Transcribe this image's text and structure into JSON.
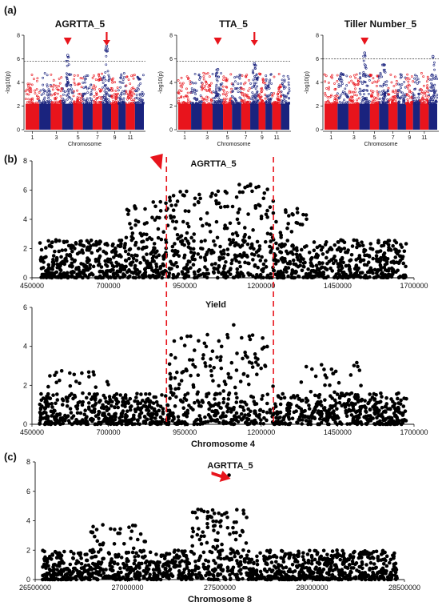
{
  "panel_labels": {
    "a": "(a)",
    "b": "(b)",
    "c": "(c)"
  },
  "chart_data": [
    {
      "type": "scatter",
      "panel": "a",
      "title": "AGRTTA_5",
      "xlabel": "Chromosome",
      "ylabel": "-log10(p)",
      "x_ticks": [
        "1",
        "3",
        "5",
        "7",
        "9",
        "11"
      ],
      "y_ticks": [
        "0",
        "2",
        "4",
        "6",
        "8"
      ],
      "ylim": [
        0,
        8
      ],
      "threshold": 5.8,
      "series_colors": [
        "#e8141c",
        "#1a237e"
      ],
      "peaks": [
        {
          "chromosome": 4,
          "value": 6.3
        },
        {
          "chromosome": 8,
          "value": 7.1
        }
      ],
      "markers": [
        {
          "shape": "triangle",
          "chromosome": 4
        },
        {
          "shape": "arrow",
          "chromosome": 8
        }
      ]
    },
    {
      "type": "scatter",
      "panel": "a",
      "title": "TTA_5",
      "xlabel": "Chromosome",
      "ylabel": "-log10(p)",
      "x_ticks": [
        "1",
        "3",
        "5",
        "7",
        "9",
        "11"
      ],
      "y_ticks": [
        "0",
        "2",
        "4",
        "6",
        "8"
      ],
      "ylim": [
        0,
        8
      ],
      "threshold": 5.8,
      "peaks": [
        {
          "chromosome": 4,
          "value": 5.1
        },
        {
          "chromosome": 8,
          "value": 5.6
        }
      ],
      "markers": [
        {
          "shape": "triangle",
          "chromosome": 4
        },
        {
          "shape": "arrow",
          "chromosome": 8
        }
      ]
    },
    {
      "type": "scatter",
      "panel": "a",
      "title": "Tiller Number_5",
      "xlabel": "Chromosome",
      "ylabel": "-log10(p)",
      "x_ticks": [
        "1",
        "3",
        "5",
        "7",
        "9",
        "11"
      ],
      "y_ticks": [
        "0",
        "2",
        "4",
        "6",
        "8"
      ],
      "ylim": [
        0,
        8
      ],
      "threshold": 6.0,
      "peaks": [
        {
          "chromosome": 4,
          "value": 6.5
        },
        {
          "chromosome": 6,
          "value": 5.5
        },
        {
          "chromosome": 12,
          "value": 6.2
        }
      ],
      "markers": [
        {
          "shape": "triangle",
          "chromosome": 4
        }
      ]
    },
    {
      "type": "scatter",
      "panel": "b",
      "title": "AGRTTA_5",
      "x_ticks": [
        "450000",
        "700000",
        "950000",
        "1200000",
        "1450000",
        "1700000"
      ],
      "y_ticks": [
        "0",
        "2",
        "4",
        "6",
        "8"
      ],
      "xlim": [
        450000,
        1700000
      ],
      "ylim": [
        0,
        8
      ],
      "region": [
        890000,
        1240000
      ],
      "max_value": 6.4,
      "markers": [
        {
          "shape": "triangle",
          "x": 860000
        }
      ]
    },
    {
      "type": "scatter",
      "panel": "b",
      "title": "Yield",
      "xlabel": "Chromosome 4",
      "x_ticks": [
        "450000",
        "700000",
        "950000",
        "1200000",
        "1450000",
        "1700000"
      ],
      "y_ticks": [
        "0",
        "2",
        "4",
        "6"
      ],
      "xlim": [
        450000,
        1700000
      ],
      "ylim": [
        0,
        6
      ],
      "region": [
        890000,
        1240000
      ],
      "max_value": 5.1
    },
    {
      "type": "scatter",
      "panel": "c",
      "title": "AGRTTA_5",
      "xlabel": "Chromosome 8",
      "x_ticks": [
        "26500000",
        "27000000",
        "27500000",
        "28000000",
        "28500000"
      ],
      "y_ticks": [
        "0",
        "2",
        "4",
        "6",
        "8"
      ],
      "xlim": [
        26500000,
        28500000
      ],
      "ylim": [
        0,
        8
      ],
      "max_value": 7.1,
      "markers": [
        {
          "shape": "arrow",
          "x": 27550000
        }
      ]
    }
  ]
}
